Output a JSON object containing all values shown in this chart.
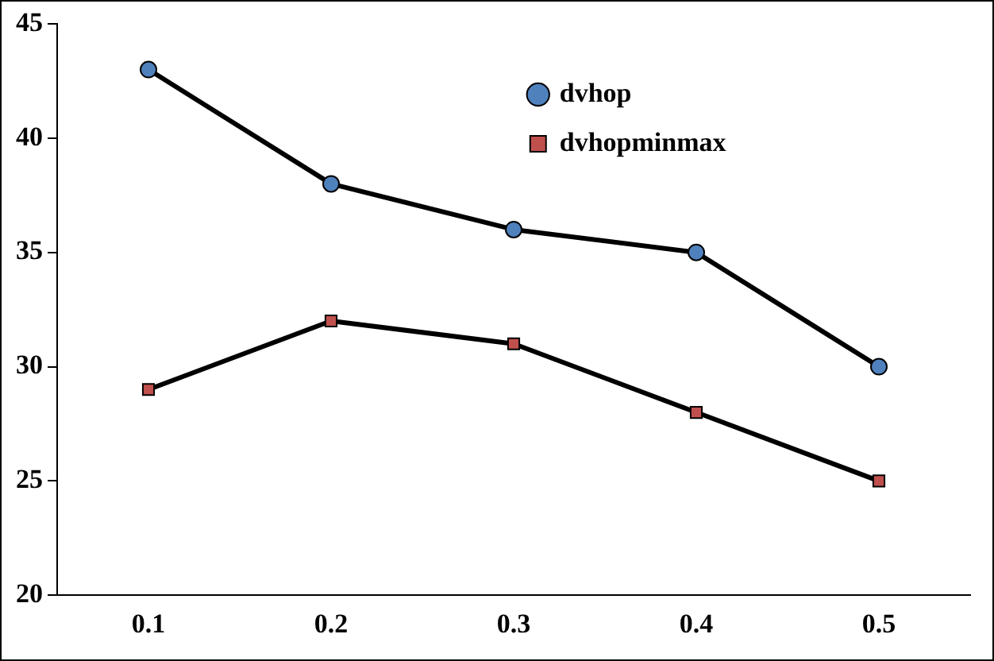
{
  "chart_data": {
    "type": "line",
    "categories": [
      "0.1",
      "0.2",
      "0.3",
      "0.4",
      "0.5"
    ],
    "series": [
      {
        "name": "dvhop",
        "color": "#4f81bd",
        "marker": "circle",
        "values": [
          43,
          38,
          36,
          35,
          30
        ]
      },
      {
        "name": "dvhopminmax",
        "color": "#c0504d",
        "marker": "square",
        "values": [
          29,
          32,
          31,
          28,
          25
        ]
      }
    ],
    "ylim": [
      20,
      45
    ],
    "yticks": [
      20,
      25,
      30,
      35,
      40,
      45
    ],
    "grid": false,
    "legend": "top right",
    "line_style": "solid"
  }
}
